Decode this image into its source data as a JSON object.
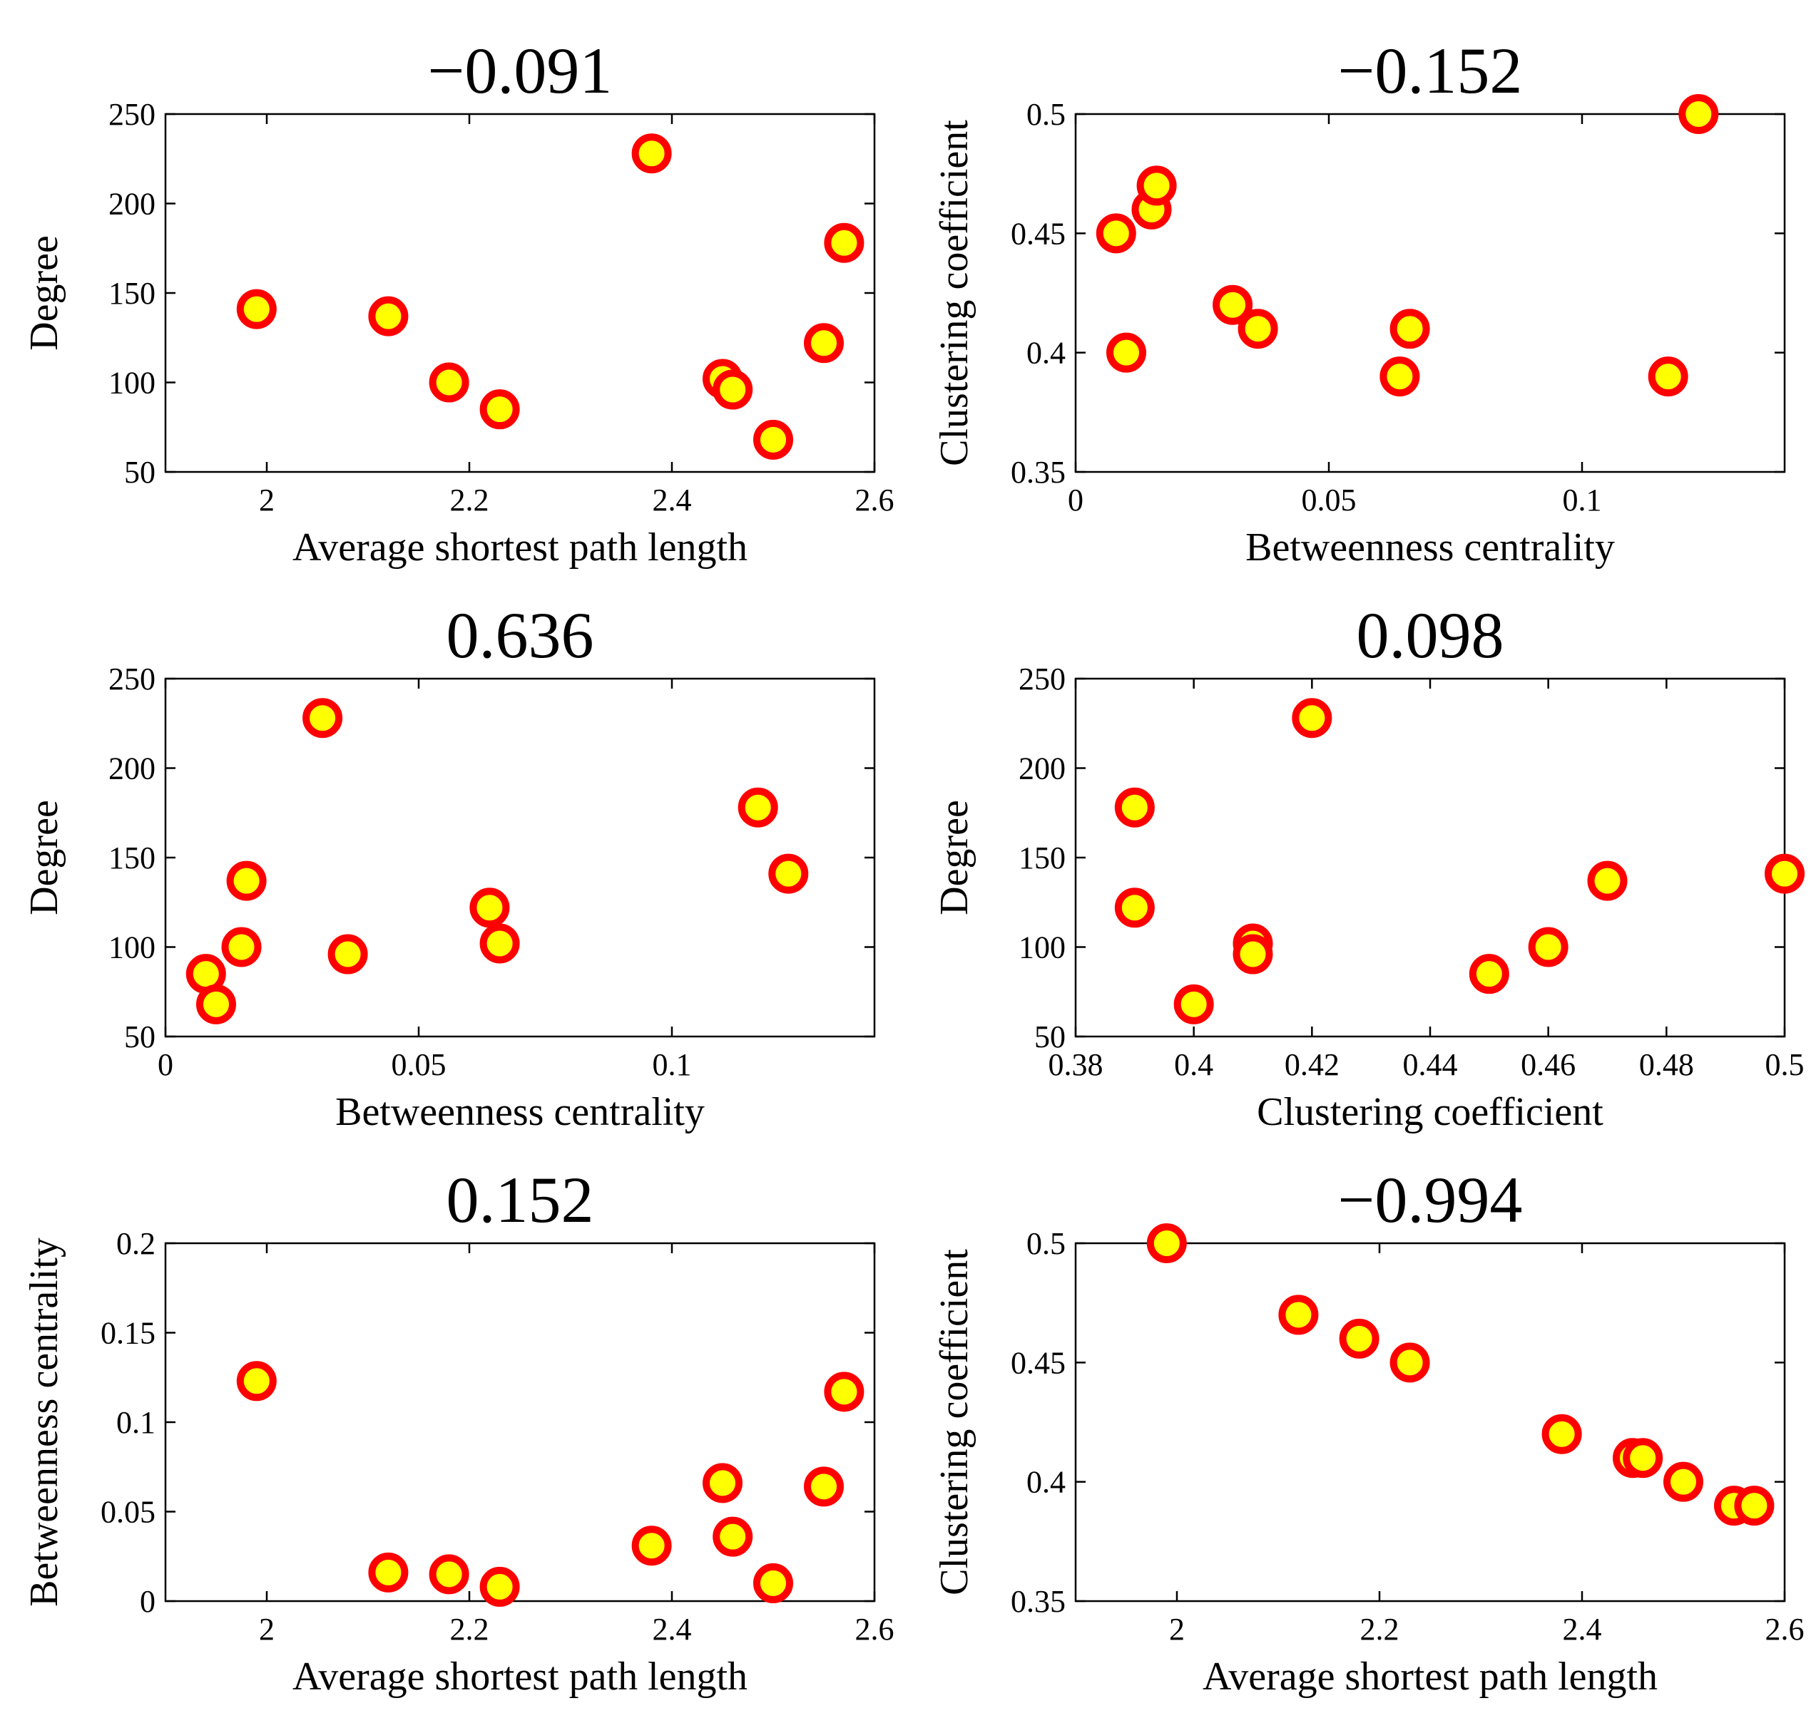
{
  "colors": {
    "marker_fill": "#ffff00",
    "marker_edge": "#ff0000",
    "axis": "#000000",
    "background": "#ffffff"
  },
  "chart_data": [
    {
      "type": "scatter",
      "title": "−0.091",
      "xlabel": "Average shortest path length",
      "ylabel": "Degree",
      "xlim": [
        1.9,
        2.6
      ],
      "ylim": [
        50,
        250
      ],
      "xticks": [
        2,
        2.2,
        2.4,
        2.6
      ],
      "xtick_labels": [
        "2",
        "2.2",
        "2.4",
        "2.6"
      ],
      "yticks": [
        50,
        100,
        150,
        200,
        250
      ],
      "ytick_labels": [
        "50",
        "100",
        "150",
        "200",
        "250"
      ],
      "x": [
        1.99,
        2.12,
        2.18,
        2.23,
        2.38,
        2.45,
        2.46,
        2.5,
        2.55,
        2.57
      ],
      "y": [
        141,
        137,
        100,
        85,
        228,
        102,
        96,
        68,
        122,
        178
      ]
    },
    {
      "type": "scatter",
      "title": "−0.152",
      "xlabel": "Betweenness centrality",
      "ylabel": "Clustering coefficient",
      "xlim": [
        0,
        0.14
      ],
      "ylim": [
        0.35,
        0.5
      ],
      "xticks": [
        0,
        0.05,
        0.1
      ],
      "xtick_labels": [
        "0",
        "0.05",
        "0.1"
      ],
      "yticks": [
        0.35,
        0.4,
        0.45,
        0.5
      ],
      "ytick_labels": [
        "0.35",
        "0.4",
        "0.45",
        "0.5"
      ],
      "x": [
        0.008,
        0.01,
        0.015,
        0.016,
        0.031,
        0.036,
        0.064,
        0.066,
        0.117,
        0.123
      ],
      "y": [
        0.45,
        0.4,
        0.46,
        0.47,
        0.42,
        0.41,
        0.39,
        0.41,
        0.39,
        0.5
      ]
    },
    {
      "type": "scatter",
      "title": "0.636",
      "xlabel": "Betweenness centrality",
      "ylabel": "Degree",
      "xlim": [
        0,
        0.14
      ],
      "ylim": [
        50,
        250
      ],
      "xticks": [
        0,
        0.05,
        0.1
      ],
      "xtick_labels": [
        "0",
        "0.05",
        "0.1"
      ],
      "yticks": [
        50,
        100,
        150,
        200,
        250
      ],
      "ytick_labels": [
        "50",
        "100",
        "150",
        "200",
        "250"
      ],
      "x": [
        0.008,
        0.01,
        0.015,
        0.016,
        0.031,
        0.036,
        0.064,
        0.066,
        0.117,
        0.123
      ],
      "y": [
        85,
        68,
        100,
        137,
        228,
        96,
        122,
        102,
        178,
        141
      ]
    },
    {
      "type": "scatter",
      "title": "0.098",
      "xlabel": "Clustering coefficient",
      "ylabel": "Degree",
      "xlim": [
        0.38,
        0.5
      ],
      "ylim": [
        50,
        250
      ],
      "xticks": [
        0.38,
        0.4,
        0.42,
        0.44,
        0.46,
        0.48,
        0.5
      ],
      "xtick_labels": [
        "0.38",
        "0.4",
        "0.42",
        "0.44",
        "0.46",
        "0.48",
        "0.5"
      ],
      "yticks": [
        50,
        100,
        150,
        200,
        250
      ],
      "ytick_labels": [
        "50",
        "100",
        "150",
        "200",
        "250"
      ],
      "x": [
        0.39,
        0.39,
        0.4,
        0.41,
        0.41,
        0.42,
        0.45,
        0.46,
        0.47,
        0.5
      ],
      "y": [
        178,
        122,
        68,
        102,
        96,
        228,
        85,
        100,
        137,
        141
      ]
    },
    {
      "type": "scatter",
      "title": "0.152",
      "xlabel": "Average shortest path length",
      "ylabel": "Betweenness centrality",
      "xlim": [
        1.9,
        2.6
      ],
      "ylim": [
        0,
        0.2
      ],
      "xticks": [
        2,
        2.2,
        2.4,
        2.6
      ],
      "xtick_labels": [
        "2",
        "2.2",
        "2.4",
        "2.6"
      ],
      "yticks": [
        0,
        0.05,
        0.1,
        0.15,
        0.2
      ],
      "ytick_labels": [
        "0",
        "0.05",
        "0.1",
        "0.15",
        "0.2"
      ],
      "x": [
        1.99,
        2.12,
        2.18,
        2.23,
        2.38,
        2.45,
        2.46,
        2.5,
        2.55,
        2.57
      ],
      "y": [
        0.123,
        0.016,
        0.015,
        0.008,
        0.031,
        0.066,
        0.036,
        0.01,
        0.064,
        0.117
      ]
    },
    {
      "type": "scatter",
      "title": "−0.994",
      "xlabel": "Average shortest path length",
      "ylabel": "Clustering coefficient",
      "xlim": [
        1.9,
        2.6
      ],
      "ylim": [
        0.35,
        0.5
      ],
      "xticks": [
        2,
        2.2,
        2.4,
        2.6
      ],
      "xtick_labels": [
        "2",
        "2.2",
        "2.4",
        "2.6"
      ],
      "yticks": [
        0.35,
        0.4,
        0.45,
        0.5
      ],
      "ytick_labels": [
        "0.35",
        "0.4",
        "0.45",
        "0.5"
      ],
      "x": [
        1.99,
        2.12,
        2.18,
        2.23,
        2.38,
        2.45,
        2.46,
        2.5,
        2.55,
        2.57
      ],
      "y": [
        0.5,
        0.47,
        0.46,
        0.45,
        0.42,
        0.41,
        0.41,
        0.4,
        0.39,
        0.39
      ]
    }
  ]
}
